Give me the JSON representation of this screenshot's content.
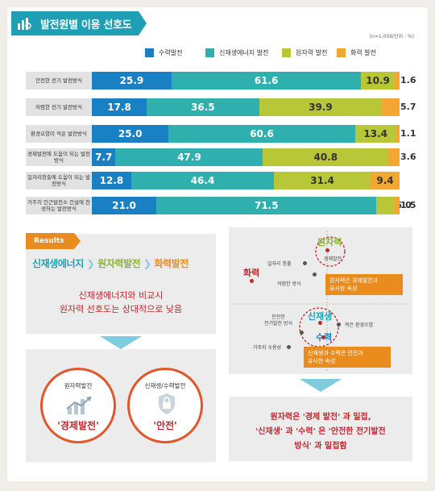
{
  "header": {
    "title": "발전원별 이용 선호도",
    "note": "(n=1,009/단위 : %)"
  },
  "chart_data": {
    "type": "bar",
    "stacked": true,
    "orientation": "horizontal",
    "categories": [
      "안전한 전기 발전방식",
      "저렴한 전기 발전방식",
      "환경오염이 적은 발전방식",
      "경제발전에 도움이 되는 발전방식",
      "일자리창출에 도움이 되는 발전방식",
      "거주지 인근발전소 건설에 찬성하는 발전방식"
    ],
    "series": [
      {
        "name": "수력발전",
        "color": "#1a80c4",
        "values": [
          25.9,
          17.8,
          25.0,
          7.7,
          12.8,
          21.0
        ]
      },
      {
        "name": "신재생에너지 발전",
        "color": "#2fb0ae",
        "values": [
          61.6,
          36.5,
          60.6,
          47.9,
          46.4,
          71.5
        ]
      },
      {
        "name": "원자력 발전",
        "color": "#b7c738",
        "values": [
          10.9,
          39.9,
          13.4,
          40.8,
          31.4,
          6.0
        ]
      },
      {
        "name": "화력 발전",
        "color": "#f2a733",
        "values": [
          1.6,
          5.7,
          1.1,
          3.6,
          9.4,
          1.5
        ]
      }
    ],
    "xlim": [
      0,
      100
    ]
  },
  "results": {
    "tag": "Results",
    "chain": [
      "신재생에너지",
      "원자력발전",
      "화력발전"
    ],
    "sub_lines": [
      "신재생에너지와 비교시",
      "원자력 선호도는 상대적으로 낮음"
    ]
  },
  "circles": [
    {
      "top": "원자력발전",
      "main": "'경제발전'"
    },
    {
      "top": "신재생/수력발전",
      "main": "'안전'"
    }
  ],
  "map": {
    "nuclear": "원자력",
    "thermal": "화력",
    "renew": "신재생",
    "hydro": "수력",
    "jobs": "일자리 창출",
    "cheap": "저렴한 방식",
    "econ": "경제발전",
    "safe": "안전한\n전기발전 방식",
    "env": "적은 환경오염",
    "resid": "거주지 수용성",
    "callout1": [
      "원자력은 경제발전과",
      "유사한 속성"
    ],
    "callout2": [
      "신재생과 수력은 안전과",
      "유사한 속성"
    ]
  },
  "conclusion": [
    "원자력은 '경제 발전' 과 밀접,",
    "'신재생' 과 '수력' 은 '안전한 전기발전",
    "방식' 과 밀접함"
  ],
  "colors": {
    "accent": "#1f9fb4",
    "orange": "#e98b1d",
    "red": "#c0272d"
  }
}
